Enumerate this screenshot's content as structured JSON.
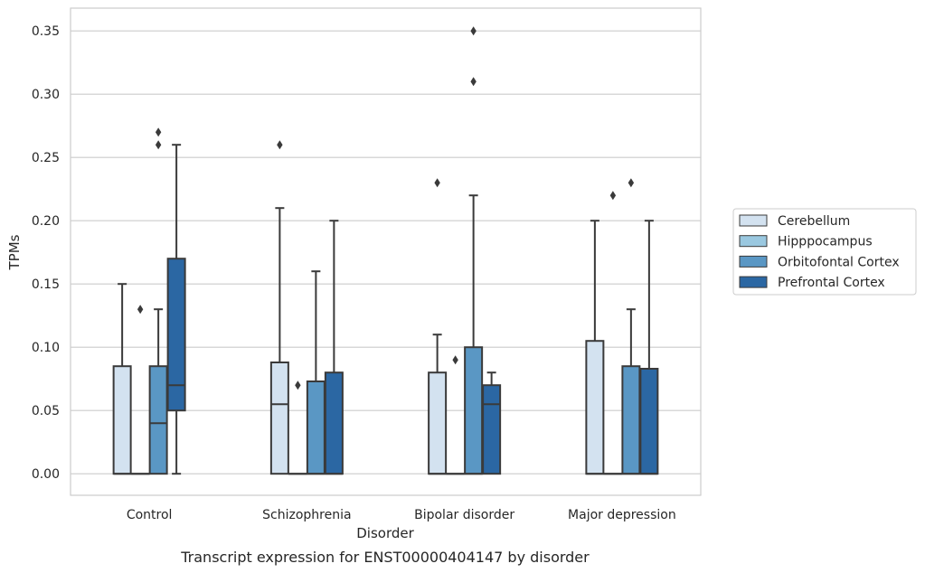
{
  "caption": "Transcript expression for ENST00000404147 by disorder",
  "chart_data": {
    "type": "box",
    "xlabel": "Disorder",
    "ylabel": "TPMs",
    "ylim": [
      -0.017,
      0.368
    ],
    "yticks": [
      0.0,
      0.05,
      0.1,
      0.15,
      0.2,
      0.25,
      0.3,
      0.35
    ],
    "grid": true,
    "legend_position": "right",
    "categories": [
      "Control",
      "Schizophrenia",
      "Bipolar disorder",
      "Major depression"
    ],
    "series": [
      {
        "name": "Cerebellum",
        "color": "#d3e2f0",
        "boxes": [
          {
            "q1": 0,
            "median": 0,
            "q3": 0.085,
            "whisker_low": 0,
            "whisker_high": 0.15,
            "outliers": []
          },
          {
            "q1": 0,
            "median": 0.055,
            "q3": 0.088,
            "whisker_low": 0,
            "whisker_high": 0.21,
            "outliers": [
              0.26
            ]
          },
          {
            "q1": 0,
            "median": 0,
            "q3": 0.08,
            "whisker_low": 0,
            "whisker_high": 0.11,
            "outliers": [
              0.23
            ]
          },
          {
            "q1": 0,
            "median": 0,
            "q3": 0.105,
            "whisker_low": 0,
            "whisker_high": 0.2,
            "outliers": []
          }
        ]
      },
      {
        "name": "Hipppocampus",
        "color": "#9ac8e0",
        "boxes": [
          {
            "q1": 0,
            "median": 0,
            "q3": 0,
            "whisker_low": 0,
            "whisker_high": 0,
            "outliers": [
              0.13
            ]
          },
          {
            "q1": 0,
            "median": 0,
            "q3": 0,
            "whisker_low": 0,
            "whisker_high": 0,
            "outliers": [
              0.07
            ]
          },
          {
            "q1": 0,
            "median": 0,
            "q3": 0,
            "whisker_low": 0,
            "whisker_high": 0,
            "outliers": [
              0.09
            ]
          },
          {
            "q1": 0,
            "median": 0,
            "q3": 0,
            "whisker_low": 0,
            "whisker_high": 0,
            "outliers": [
              0.22
            ]
          }
        ]
      },
      {
        "name": "Orbitofontal Cortex",
        "color": "#5a97c4",
        "boxes": [
          {
            "q1": 0,
            "median": 0.04,
            "q3": 0.085,
            "whisker_low": 0,
            "whisker_high": 0.13,
            "outliers": [
              0.26,
              0.27
            ]
          },
          {
            "q1": 0,
            "median": 0,
            "q3": 0.073,
            "whisker_low": 0,
            "whisker_high": 0.16,
            "outliers": []
          },
          {
            "q1": 0,
            "median": 0,
            "q3": 0.1,
            "whisker_low": 0,
            "whisker_high": 0.22,
            "outliers": [
              0.31,
              0.35
            ]
          },
          {
            "q1": 0,
            "median": 0,
            "q3": 0.085,
            "whisker_low": 0,
            "whisker_high": 0.13,
            "outliers": [
              0.23
            ]
          }
        ]
      },
      {
        "name": "Prefrontal Cortex",
        "color": "#2b67a3",
        "boxes": [
          {
            "q1": 0.05,
            "median": 0.07,
            "q3": 0.17,
            "whisker_low": 0,
            "whisker_high": 0.26,
            "outliers": []
          },
          {
            "q1": 0,
            "median": 0,
            "q3": 0.08,
            "whisker_low": 0,
            "whisker_high": 0.2,
            "outliers": []
          },
          {
            "q1": 0,
            "median": 0.055,
            "q3": 0.07,
            "whisker_low": 0,
            "whisker_high": 0.08,
            "outliers": []
          },
          {
            "q1": 0,
            "median": 0,
            "q3": 0.083,
            "whisker_low": 0,
            "whisker_high": 0.2,
            "outliers": []
          }
        ]
      }
    ]
  },
  "colors": {
    "grid": "#cccccc",
    "frame": "#cccccc",
    "box_edge": "#3a3a3a"
  }
}
